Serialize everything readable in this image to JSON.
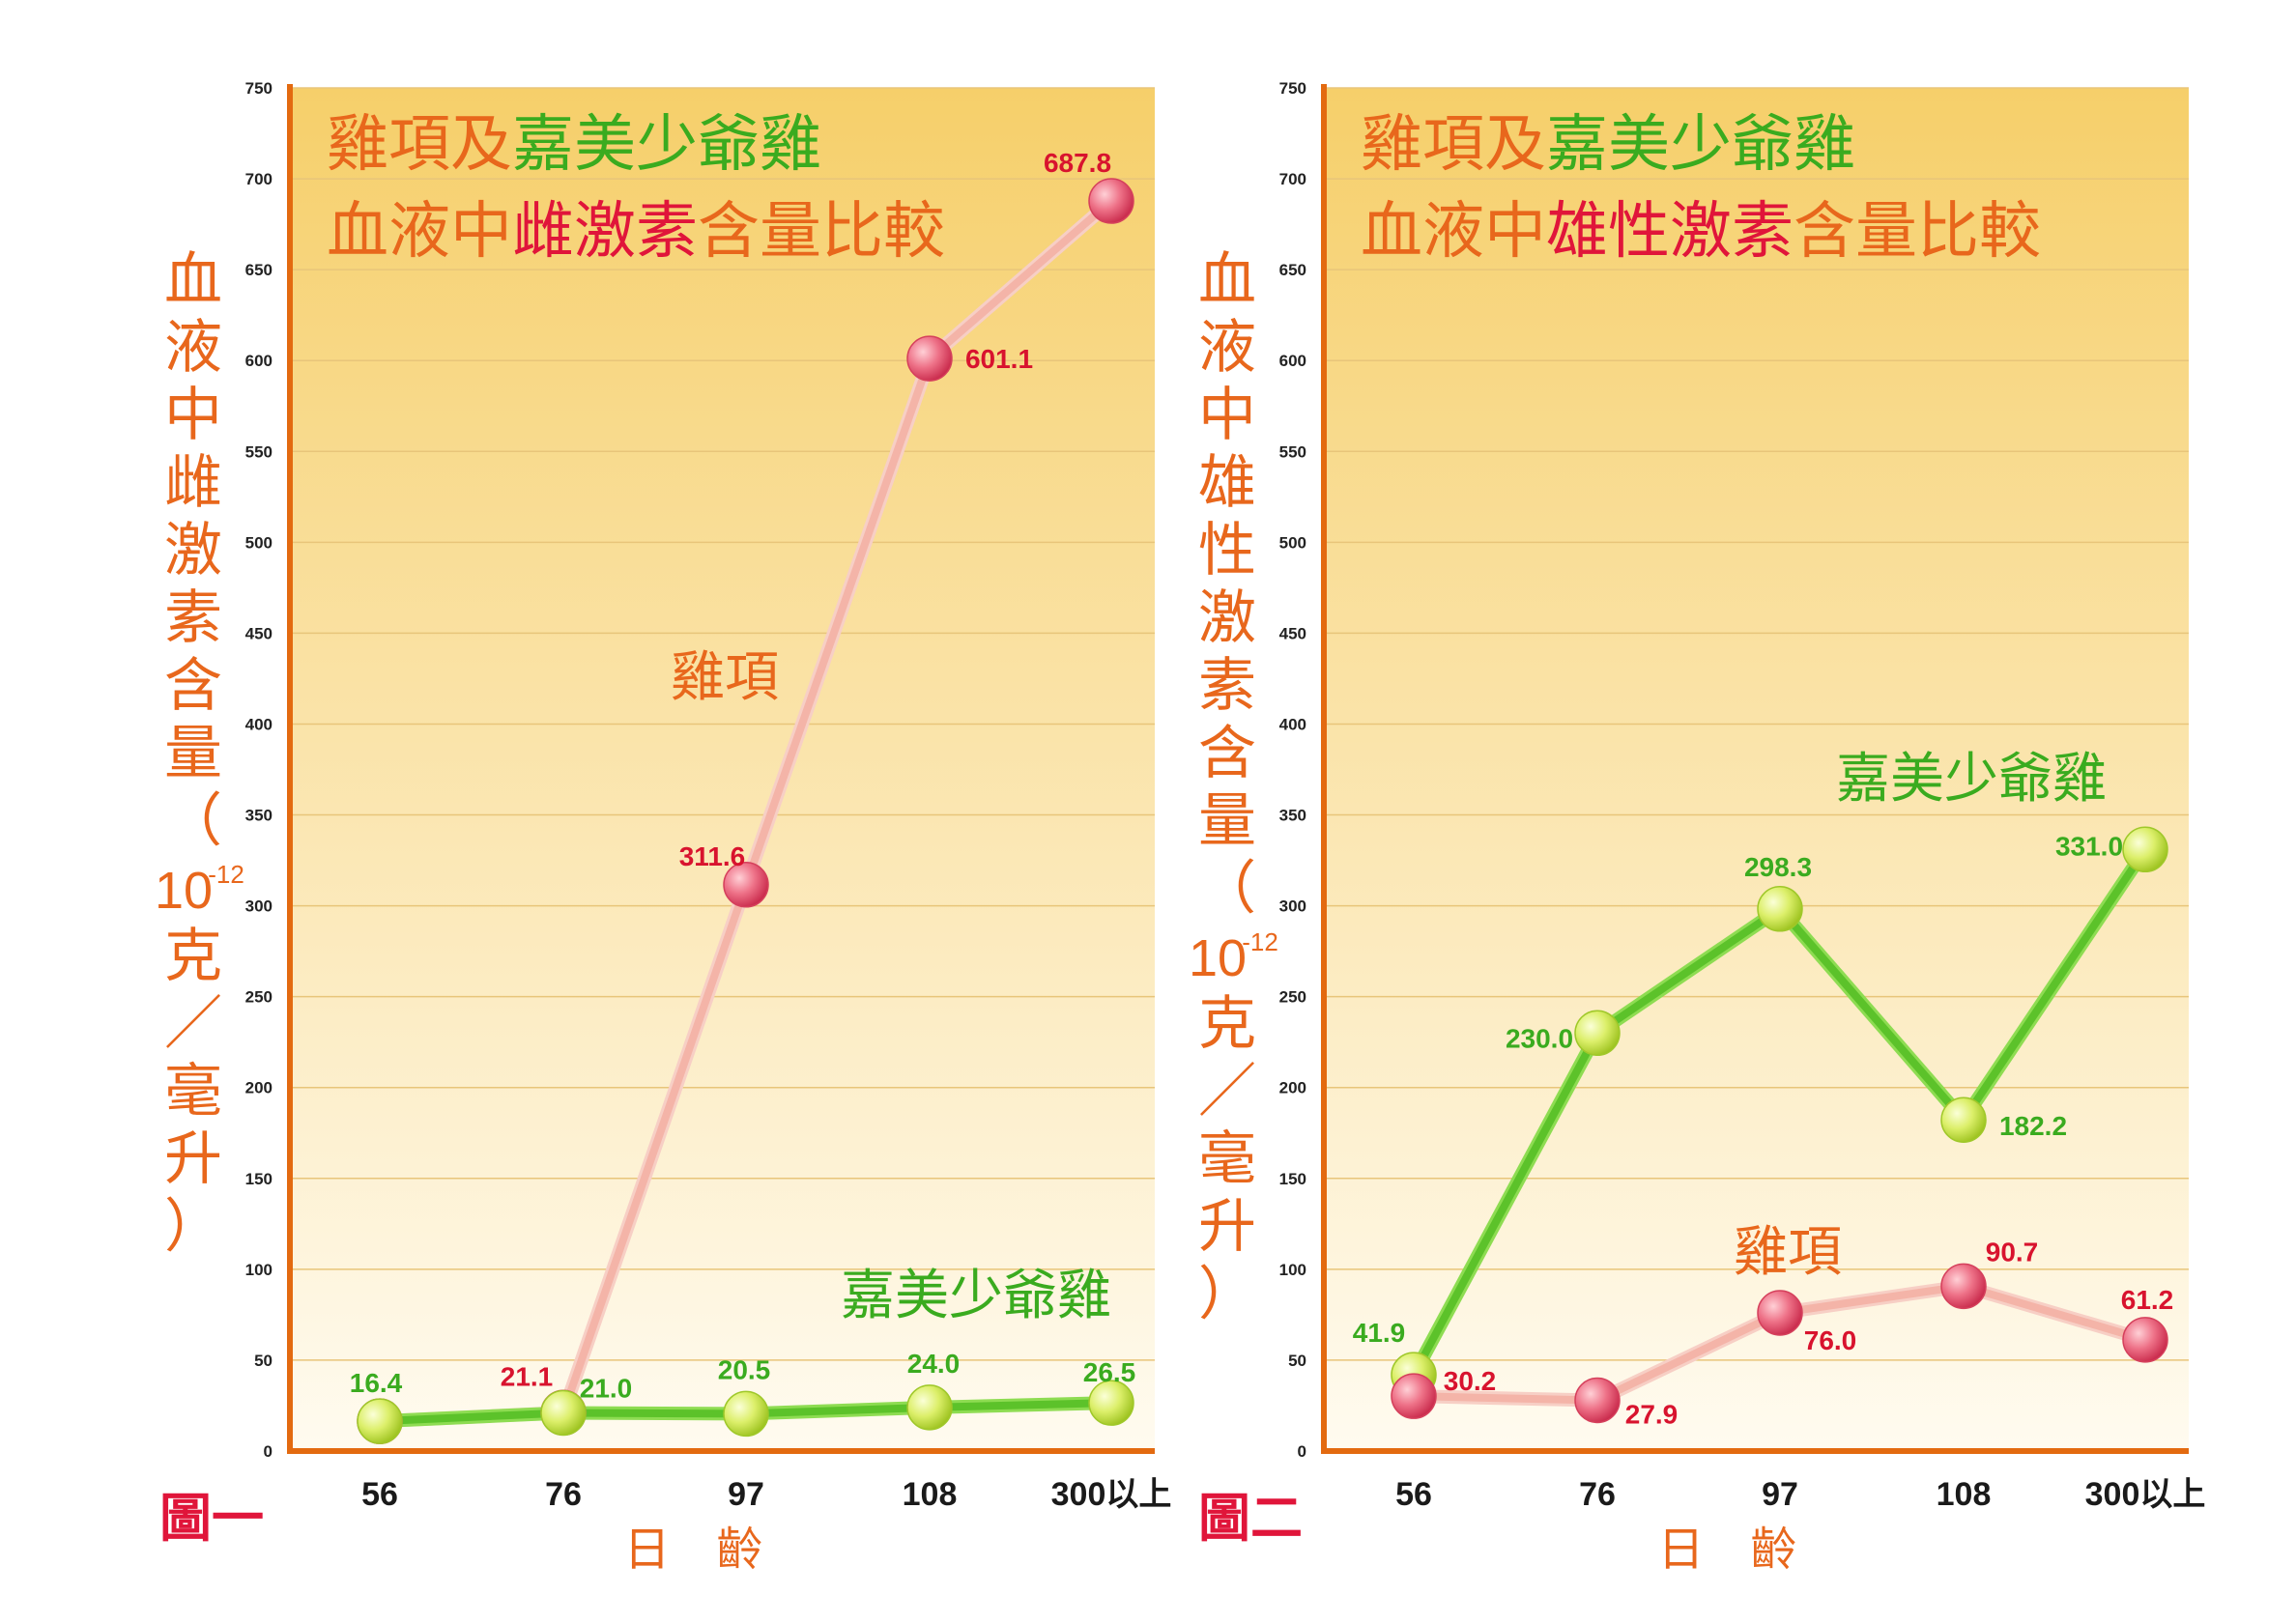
{
  "chart_data": [
    {
      "type": "line",
      "figure_label": "圖一",
      "title": {
        "line1": [
          {
            "text": "雞項及",
            "color": "#e8671c"
          },
          {
            "text": "嘉美少爺雞",
            "color": "#3aab1f"
          }
        ],
        "line2": [
          {
            "text": "血液中",
            "color": "#e8671c"
          },
          {
            "text": "雌激素",
            "color": "#e0153a"
          },
          {
            "text": "含量比較",
            "color": "#e8671c"
          }
        ]
      },
      "ylabel": {
        "chars": [
          "血",
          "液",
          "中",
          "雌",
          "激",
          "素",
          "含",
          "量",
          "（"
        ],
        "unit_base": "10",
        "unit_exp": "-12",
        "unit_rest": [
          "克",
          "／",
          "毫",
          "升",
          "）"
        ]
      },
      "xlabel": "日　齡",
      "categories": [
        "56",
        "76",
        "97",
        "108",
        "300以上"
      ],
      "ylim": [
        0,
        750
      ],
      "yticks": [
        0,
        50,
        100,
        150,
        200,
        250,
        300,
        350,
        400,
        450,
        500,
        550,
        600,
        650,
        700,
        750
      ],
      "series": [
        {
          "name": "雞項",
          "color": "#f4b4a8",
          "marker": "#e0506a",
          "label_color": "#d8132e",
          "values": [
            16.4,
            21.1,
            311.6,
            601.1,
            687.8
          ],
          "labels": [
            "",
            "21.1",
            "311.6",
            "601.1",
            "687.8"
          ]
        },
        {
          "name": "嘉美少爺雞",
          "color": "#5cc22a",
          "marker": "#c6e83a",
          "label_color": "#3aab1f",
          "values": [
            16.4,
            21.0,
            20.5,
            24.0,
            26.5
          ],
          "labels": [
            "16.4",
            "21.0",
            "20.5",
            "24.0",
            "26.5"
          ]
        }
      ]
    },
    {
      "type": "line",
      "figure_label": "圖二",
      "title": {
        "line1": [
          {
            "text": "雞項及",
            "color": "#e8671c"
          },
          {
            "text": "嘉美少爺雞",
            "color": "#3aab1f"
          }
        ],
        "line2": [
          {
            "text": "血液中",
            "color": "#e8671c"
          },
          {
            "text": "雄性激素",
            "color": "#e0153a"
          },
          {
            "text": "含量比較",
            "color": "#e8671c"
          }
        ]
      },
      "ylabel": {
        "chars": [
          "血",
          "液",
          "中",
          "雄",
          "性",
          "激",
          "素",
          "含",
          "量",
          "（"
        ],
        "unit_base": "10",
        "unit_exp": "-12",
        "unit_rest": [
          "克",
          "／",
          "毫",
          "升",
          "）"
        ]
      },
      "xlabel": "日　齡",
      "categories": [
        "56",
        "76",
        "97",
        "108",
        "300以上"
      ],
      "ylim": [
        0,
        750
      ],
      "yticks": [
        0,
        50,
        100,
        150,
        200,
        250,
        300,
        350,
        400,
        450,
        500,
        550,
        600,
        650,
        700,
        750
      ],
      "series": [
        {
          "name": "嘉美少爺雞",
          "color": "#5cc22a",
          "marker": "#c6e83a",
          "label_color": "#3aab1f",
          "values": [
            41.9,
            230.0,
            298.3,
            182.2,
            331.0
          ],
          "labels": [
            "41.9",
            "230.0",
            "298.3",
            "182.2",
            "331.0"
          ]
        },
        {
          "name": "雞項",
          "color": "#f4b4a8",
          "marker": "#e0506a",
          "label_color": "#d8132e",
          "values": [
            30.2,
            27.9,
            76.0,
            90.7,
            61.2
          ],
          "labels": [
            "30.2",
            "27.9",
            "76.0",
            "90.7",
            "61.2"
          ]
        }
      ]
    }
  ]
}
